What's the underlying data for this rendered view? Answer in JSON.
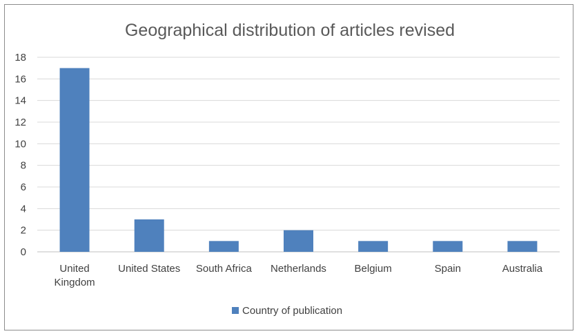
{
  "chart_data": {
    "type": "bar",
    "title": "Geographical distribution of articles revised",
    "categories": [
      [
        "United",
        "Kingdom"
      ],
      [
        "United States"
      ],
      [
        "South Africa"
      ],
      [
        "Netherlands"
      ],
      [
        "Belgium"
      ],
      [
        "Spain"
      ],
      [
        "Australia"
      ]
    ],
    "series": [
      {
        "name": "Country of publication",
        "values": [
          17,
          3,
          1,
          2,
          1,
          1,
          1
        ],
        "color": "#4f81bd"
      }
    ],
    "ylim": [
      0,
      18
    ],
    "yticks": [
      0,
      2,
      4,
      6,
      8,
      10,
      12,
      14,
      16,
      18
    ],
    "grid": true,
    "gridColor": "#d9d9d9",
    "legend": "bottom"
  }
}
